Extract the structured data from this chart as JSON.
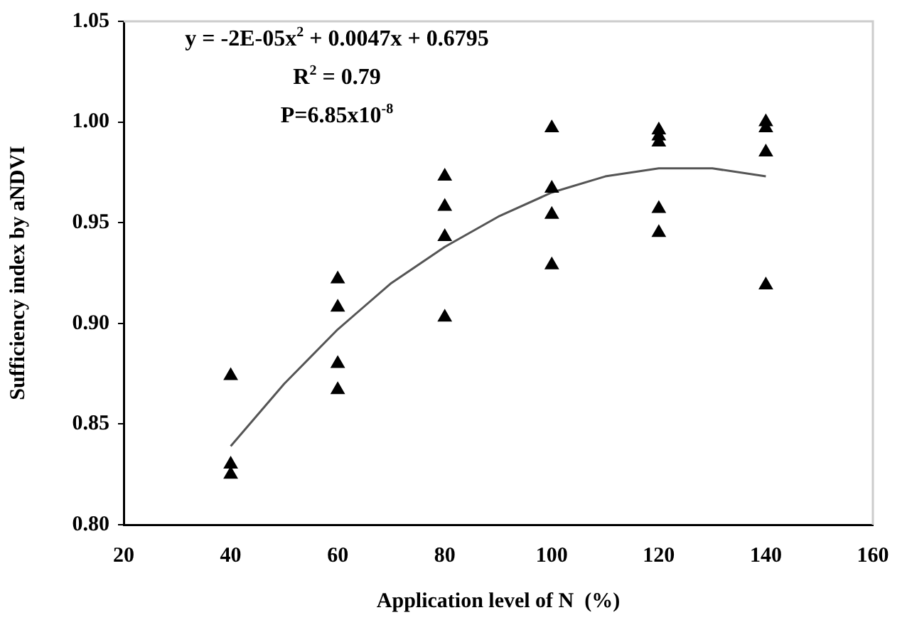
{
  "chart_data": {
    "type": "scatter",
    "xlabel": "Application level of N  (%)",
    "ylabel": "Sufficiency index by aNDVI",
    "annotations": [
      "y = -2E-05x$^{2}$ + 0.0047x + 0.6795",
      "R$^{2}$ = 0.79",
      "P=6.85x10$^{-8}$"
    ],
    "xlim": [
      20,
      160
    ],
    "xticks": [
      20,
      40,
      60,
      80,
      100,
      120,
      140,
      160
    ],
    "ylim": [
      0.8,
      1.05
    ],
    "yticks": [
      {
        "value": 0.8,
        "label": "0.80"
      },
      {
        "value": 0.85,
        "label": "0.85"
      },
      {
        "value": 0.9,
        "label": "0.90"
      },
      {
        "value": 0.95,
        "label": "0.95"
      },
      {
        "value": 1.0,
        "label": "1.00"
      },
      {
        "value": 1.05,
        "label": "1.05"
      }
    ],
    "grid": false,
    "legend": false,
    "marker": "triangle",
    "series": [
      {
        "color": "#000000",
        "x": [
          40,
          40,
          40,
          60,
          60,
          60,
          60,
          80,
          80,
          80,
          80,
          100,
          100,
          100,
          100,
          120,
          120,
          120,
          120,
          120,
          140,
          140,
          140,
          140
        ],
        "values": [
          0.874,
          0.83,
          0.825,
          0.922,
          0.908,
          0.88,
          0.867,
          0.973,
          0.958,
          0.943,
          0.903,
          0.997,
          0.967,
          0.954,
          0.929,
          0.996,
          0.993,
          0.99,
          0.957,
          0.945,
          1.0,
          0.997,
          0.985,
          0.919
        ]
      },
      {
        "type": "line",
        "color": "#555555",
        "marker": "none",
        "line_style": "solid",
        "x": [
          40,
          50,
          60,
          70,
          80,
          90,
          100,
          110,
          120,
          130,
          140
        ],
        "values": [
          0.839,
          0.87,
          0.897,
          0.92,
          0.938,
          0.953,
          0.965,
          0.973,
          0.977,
          0.977,
          0.973
        ]
      }
    ]
  }
}
